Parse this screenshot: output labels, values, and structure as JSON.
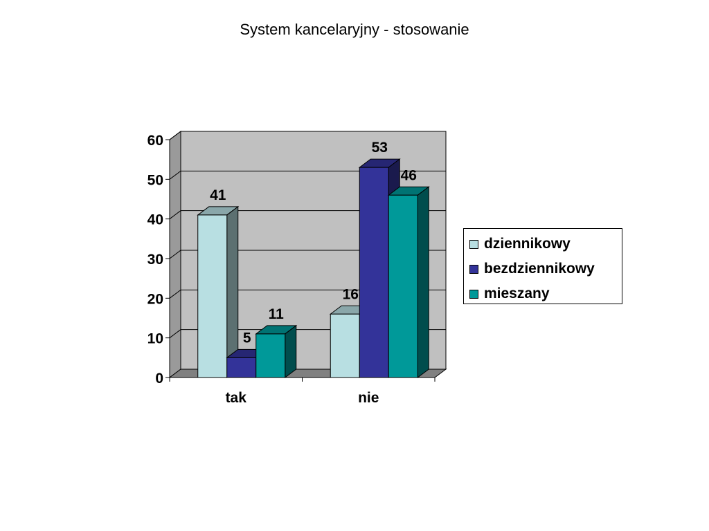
{
  "chart_data": {
    "type": "bar",
    "title": "System kancelaryjny - stosowanie",
    "xlabel": "",
    "ylabel": "",
    "categories": [
      "tak",
      "nie"
    ],
    "series": [
      {
        "name": "dziennikowy",
        "values": [
          41,
          16
        ],
        "color": "#b8dfe2"
      },
      {
        "name": "bezdziennikowy",
        "values": [
          5,
          53
        ],
        "color": "#333399"
      },
      {
        "name": "mieszany",
        "values": [
          11,
          46
        ],
        "color": "#009999"
      }
    ],
    "ylim": [
      0,
      60
    ],
    "yticks": [
      0,
      10,
      20,
      30,
      40,
      50,
      60
    ],
    "grid": true,
    "legend_position": "right",
    "three_d": true,
    "colors": {
      "wall": "#c0c0c0",
      "floor": "#808080",
      "gridline": "#000000"
    }
  }
}
